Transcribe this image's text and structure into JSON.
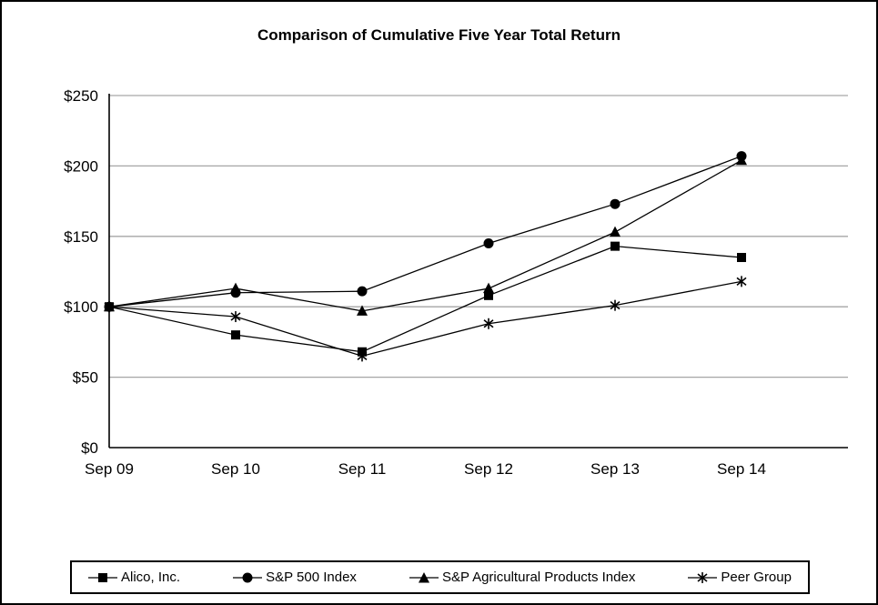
{
  "chart_data": {
    "type": "line",
    "title": "Comparison of Cumulative Five Year Total Return",
    "categories": [
      "Sep 09",
      "Sep 10",
      "Sep 11",
      "Sep 12",
      "Sep 13",
      "Sep 14"
    ],
    "series": [
      {
        "name": "Alico, Inc.",
        "marker": "square",
        "values": [
          100,
          80,
          68,
          108,
          143,
          135
        ]
      },
      {
        "name": "S&P 500 Index",
        "marker": "circle",
        "values": [
          100,
          110,
          111,
          145,
          173,
          207
        ]
      },
      {
        "name": "S&P Agricultural Products Index",
        "marker": "triangle",
        "values": [
          100,
          113,
          97,
          113,
          153,
          204
        ]
      },
      {
        "name": "Peer Group",
        "marker": "asterisk",
        "values": [
          100,
          93,
          65,
          88,
          101,
          118
        ]
      }
    ],
    "xlabel": "",
    "ylabel": "",
    "ylim": [
      0,
      250
    ],
    "ytick_step": 50,
    "ytick_format": "$",
    "grid": "horizontal",
    "legend_position": "bottom",
    "colors": {
      "line": "#000000",
      "grid": "#a6a6a6",
      "axis": "#000000"
    }
  }
}
